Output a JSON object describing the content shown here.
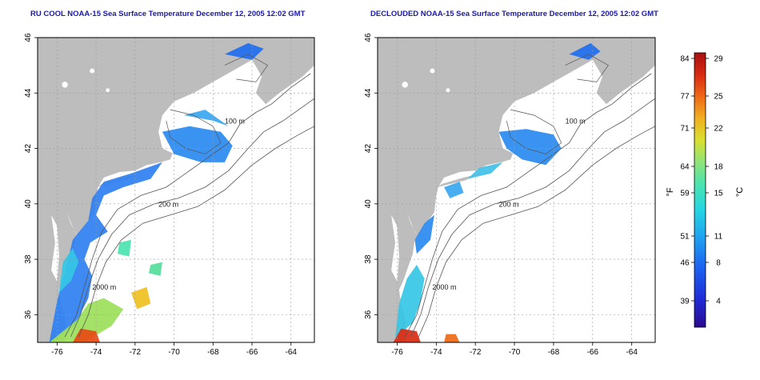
{
  "left_panel": {
    "title": "RU COOL NOAA-15 Sea Surface Temperature December 12, 2005 12:02 GMT"
  },
  "right_panel": {
    "title": "DECLOUDED NOAA-15 Sea Surface Temperature December 12, 2005 12:02 GMT"
  },
  "map_axes": {
    "lon_ticks": [
      "-76",
      "-74",
      "-72",
      "-70",
      "-68",
      "-66",
      "-64"
    ],
    "lat_ticks": [
      "36",
      "38",
      "40",
      "42",
      "44",
      "46"
    ],
    "lon_range": [
      -77.0,
      -62.8
    ],
    "lat_range": [
      35.0,
      46.0
    ]
  },
  "contour_labels": {
    "c100": "100 m",
    "c200": "200 m",
    "c2000": "2000 m"
  },
  "colorbar": {
    "fahrenheit_label": "°F",
    "celsius_label": "°C",
    "fahrenheit_ticks": [
      "84",
      "77",
      "71",
      "64",
      "59",
      "51",
      "46",
      "39"
    ],
    "celsius_ticks": [
      "29",
      "25",
      "22",
      "18",
      "15",
      "11",
      "8",
      "4"
    ],
    "colors": [
      "#2b0a8f",
      "#1f2bd6",
      "#1c63f0",
      "#1fa3f0",
      "#25d6e0",
      "#4be3b0",
      "#8ee37a",
      "#d8e030",
      "#f0b020",
      "#ee6a15",
      "#d82a12",
      "#a80f0f"
    ]
  },
  "colors": {
    "land": "#bdbdbd",
    "ocean": "#ffffff",
    "grid": "#9a9a9a",
    "title": "#1a1aa8"
  }
}
